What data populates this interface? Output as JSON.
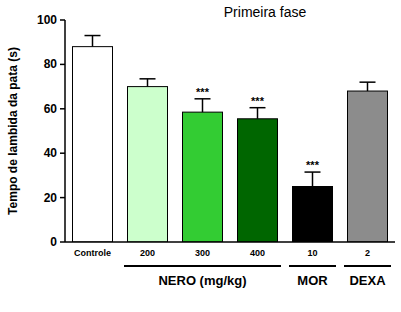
{
  "chart_data": {
    "type": "bar",
    "title": "Primeira fase",
    "y_label": "Tempo de lambida da pata (s)",
    "categories": [
      "Controle",
      "200",
      "300",
      "400",
      "10",
      "2"
    ],
    "values": [
      88,
      70,
      58.5,
      55.5,
      25,
      68
    ],
    "errors": [
      5,
      3.5,
      6,
      5,
      6.5,
      4
    ],
    "colors": [
      "#ffffff",
      "#ccffcc",
      "#33cc33",
      "#006600",
      "#000000",
      "#8c8c8c"
    ],
    "significance": [
      null,
      null,
      "***",
      "***",
      "***",
      null
    ],
    "groups": [
      {
        "label": "NERO (mg/kg)",
        "categories": [
          "200",
          "300",
          "400"
        ]
      },
      {
        "label": "MOR",
        "categories": [
          "10"
        ]
      },
      {
        "label": "DEXA",
        "categories": [
          "2"
        ]
      }
    ],
    "ylim": [
      0,
      100
    ],
    "yticks": [
      0,
      20,
      40,
      60,
      80,
      100
    ],
    "grid": false
  }
}
